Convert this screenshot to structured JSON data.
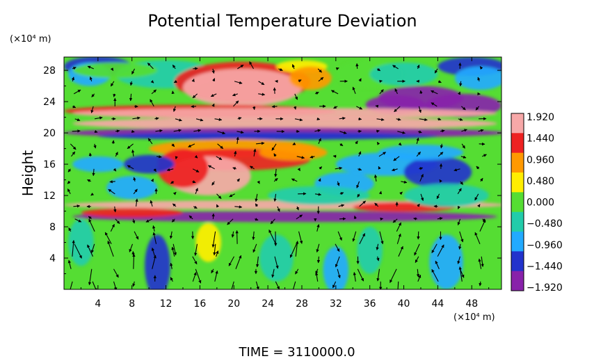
{
  "chart_data": {
    "type": "heatmap",
    "title": "Potential Temperature Deviation",
    "ylabel": "Height",
    "x_unit_label": "(×10⁴ m)",
    "y_unit_label": "(×10⁴ m)",
    "footer": "TIME  =  3110000.0",
    "x_ticks": [
      4,
      8,
      12,
      16,
      20,
      24,
      28,
      32,
      36,
      40,
      44,
      48
    ],
    "y_ticks": [
      4,
      8,
      12,
      16,
      20,
      24,
      28
    ],
    "xlim": [
      0,
      51.5
    ],
    "ylim": [
      0,
      29.7
    ],
    "colorbar": {
      "labels": [
        "1.920",
        "1.440",
        "0.960",
        "0.480",
        "0.000",
        "−0.480",
        "−0.960",
        "−1.440",
        "−1.920"
      ],
      "values": [
        1.92,
        1.44,
        0.96,
        0.48,
        0.0,
        -0.48,
        -0.96,
        -1.44,
        -1.92
      ],
      "colors": [
        "#f7a8a8",
        "#ee2222",
        "#ff9900",
        "#ffee00",
        "#55dd33",
        "#22ccaa",
        "#22aaff",
        "#2233cc",
        "#8822aa"
      ]
    },
    "overlay": "wind vector arrows",
    "background_field_color": "#55dd33"
  }
}
